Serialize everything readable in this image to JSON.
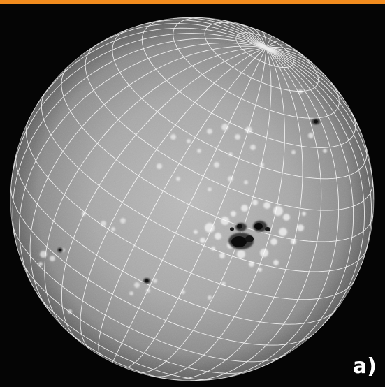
{
  "panel": {
    "label": "a)"
  },
  "colors": {
    "accent_bar": "#f28c1e",
    "background": "#050505",
    "disk_center": "#b9b9b9",
    "disk_edge": "#5c5c5c",
    "grid_lines": "#ffffff",
    "sunspot_umbra": "#0b0b0b",
    "sunspot_penumbra": "#3c3c3c",
    "plage": "#ececec"
  },
  "features": {
    "coordinate_grid": "heliographic-grid",
    "sunspot_groups": [
      "large-central-group",
      "north-east-spot",
      "west-limb-spot",
      "south-west-spot",
      "limb-small-spot"
    ],
    "plage_regions": [
      "central-plage",
      "north-plage",
      "west-plage",
      "south-west-plage"
    ]
  }
}
